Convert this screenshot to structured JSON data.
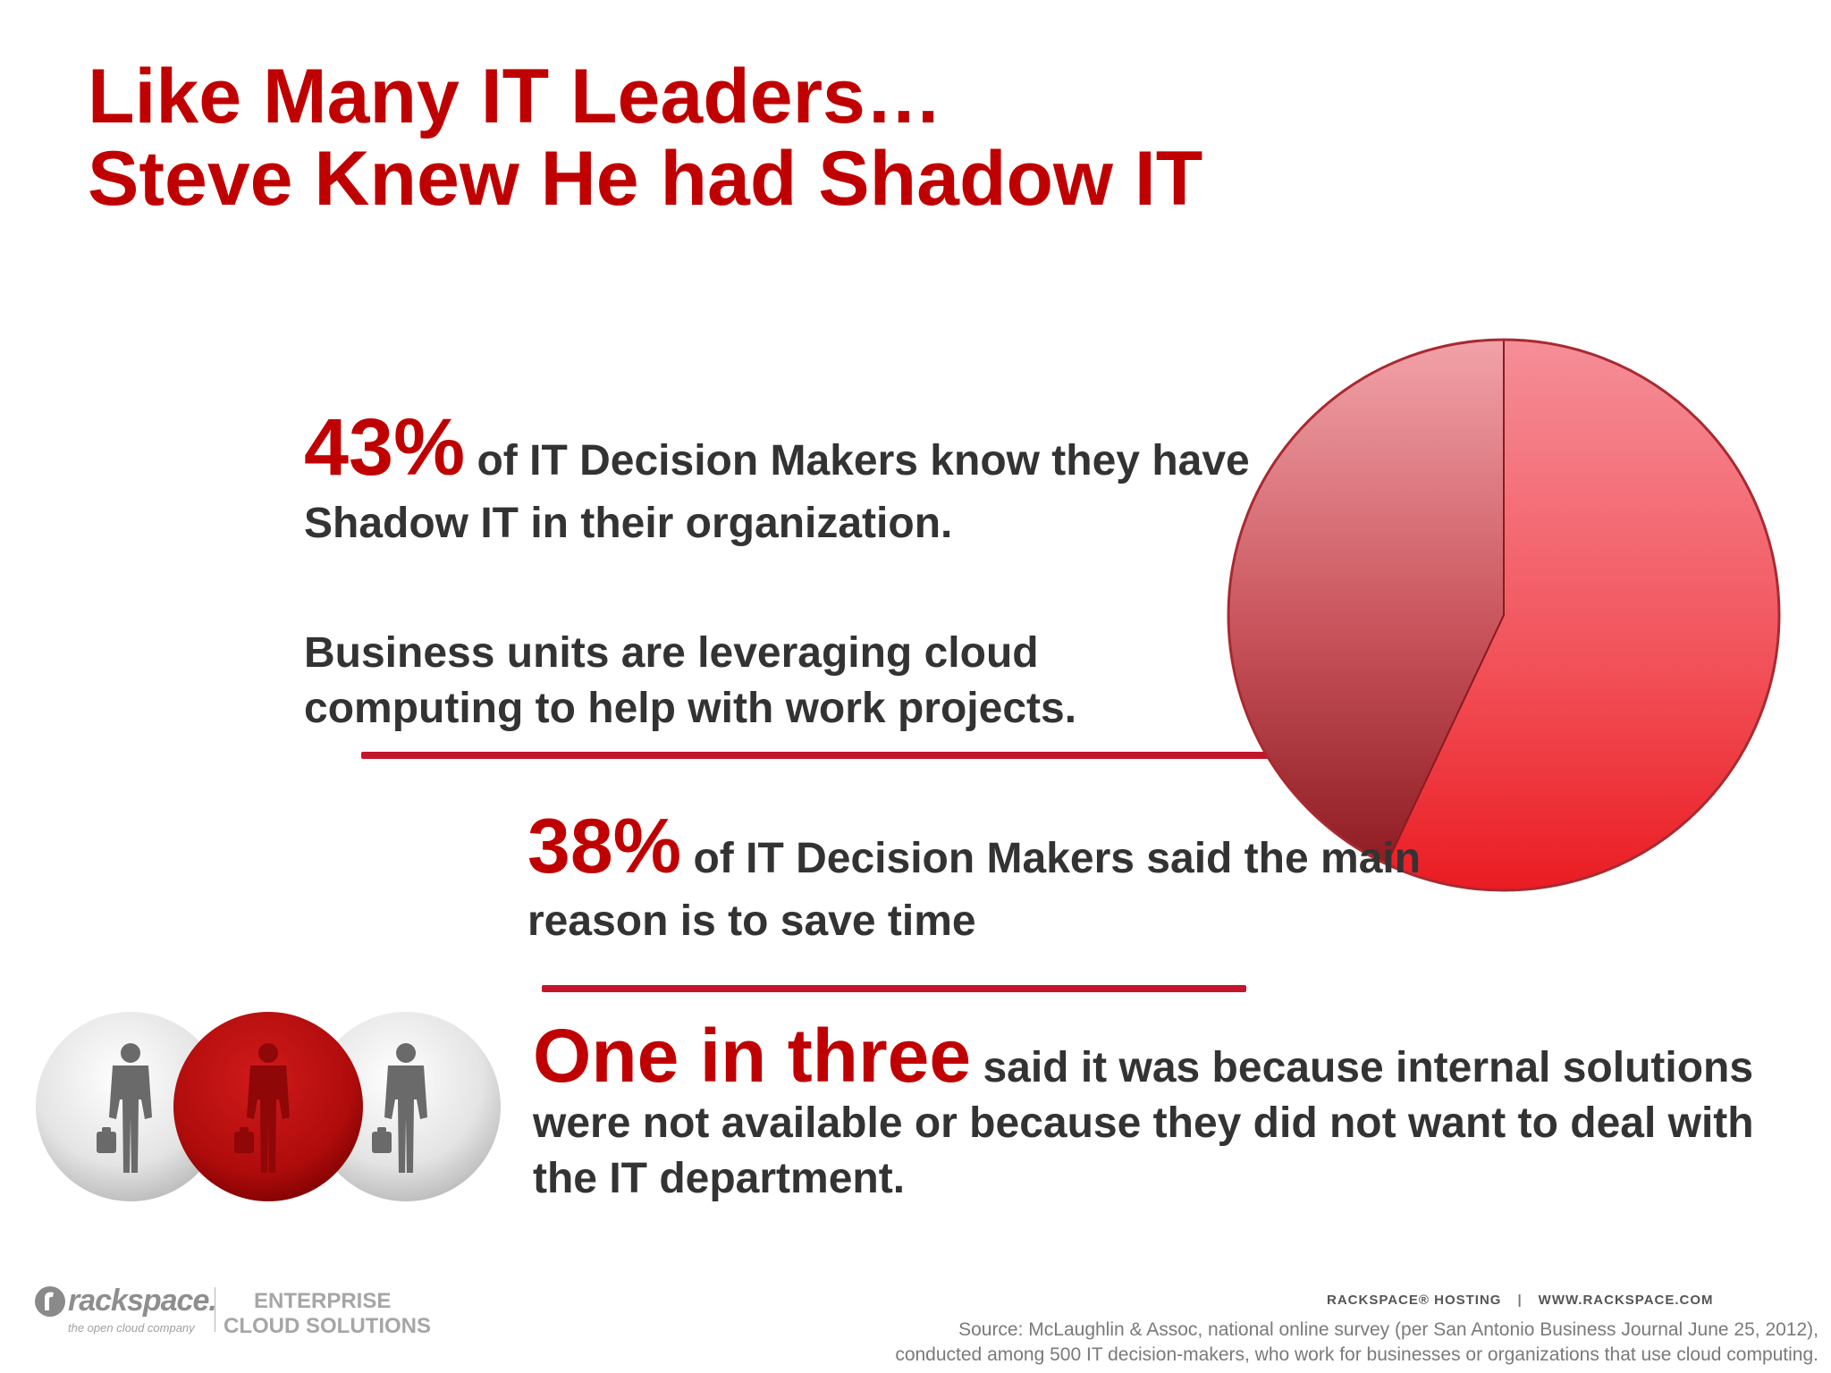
{
  "slide": {
    "title_line1": "Like Many IT Leaders…",
    "title_line2": "Steve Knew He had Shadow IT"
  },
  "stats": [
    {
      "highlight": "43%",
      "text": "of IT Decision Makers know they have Shadow IT in their organization."
    },
    {
      "text": "Business units  are leveraging cloud computing to help with work projects."
    },
    {
      "highlight": "38%",
      "text": "of IT Decision Makers said the main reason is to save time"
    },
    {
      "highlight": "One in three",
      "text": "said it was because internal solutions were not available or because they did not want to deal with the IT department."
    }
  ],
  "chart_data": {
    "type": "pie",
    "values": [
      43,
      57
    ],
    "colors": [
      "#b33840",
      "#f04a55"
    ]
  },
  "people_graphic": {
    "count": 3,
    "highlighted_index": 1,
    "icons": [
      "person-with-briefcase-icon",
      "person-with-briefcase-icon",
      "person-with-briefcase-icon"
    ]
  },
  "footer": {
    "logo_wordmark": "rackspace.",
    "logo_tagline": "the open cloud company",
    "logo_enterprise_line1": "ENTERPRISE",
    "logo_enterprise_line2": "CLOUD SOLUTIONS",
    "brand_left": "RACKSPACE® HOSTING",
    "brand_sep": "|",
    "brand_right": "WWW.RACKSPACE.COM",
    "source_line1": "Source:  McLaughlin & Assoc, national online survey (per San Antonio Business Journal June 25, 2012),",
    "source_line2": "conducted among 500 IT decision-makers, who work for businesses or organizations that use cloud computing."
  },
  "colors": {
    "accent": "#c00000",
    "divider": "#c4162a",
    "body_text": "#333333"
  }
}
